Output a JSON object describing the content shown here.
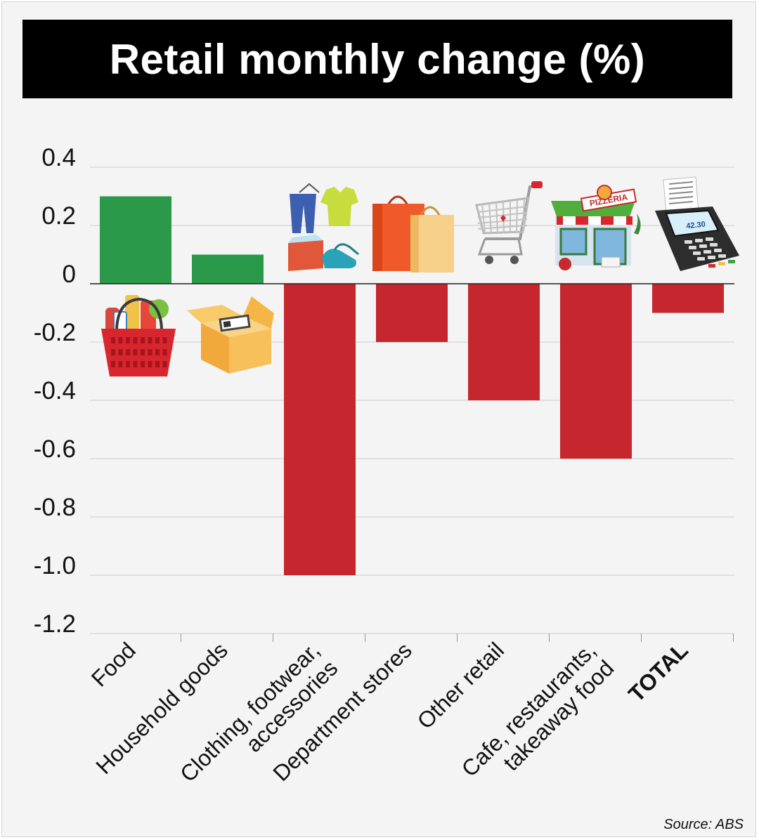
{
  "colors": {
    "positive": "#2a9a4a",
    "negative": "#c6262e",
    "grid": "#cccccc",
    "text": "#111111",
    "background": "#f4f4f4"
  },
  "chart_data": {
    "type": "bar",
    "title": "Retail monthly change (%)",
    "categories": [
      "Food",
      "Household goods",
      "Clothing, footwear,\naccessories",
      "Department stores",
      "Other retail",
      "Cafe, restaurants,\ntakeaway food",
      "TOTAL"
    ],
    "values": [
      0.3,
      0.1,
      -1.0,
      -0.2,
      -0.4,
      -0.6,
      -0.1
    ],
    "icons": [
      "grocery-basket-icon",
      "cardboard-box-icon",
      "clothing-and-shoes-icon",
      "shopping-bags-icon",
      "shopping-cart-icon",
      "pizzeria-shop-icon",
      "payment-terminal-icon"
    ],
    "terminal_display": "42.30",
    "pizzeria_sign": "PIZZERIA",
    "ylim": [
      -1.2,
      0.4
    ],
    "yticks": [
      "0.4",
      "0.2",
      "0",
      "-0.2",
      "-0.4",
      "-0.6",
      "-0.8",
      "-1.0",
      "-1.2"
    ],
    "ytick_values": [
      0.4,
      0.2,
      0,
      -0.2,
      -0.4,
      -0.6,
      -0.8,
      -1.0,
      -1.2
    ],
    "xlabel": "",
    "ylabel": "",
    "grid": true,
    "bold_category": "TOTAL",
    "source": "Source: ABS"
  }
}
